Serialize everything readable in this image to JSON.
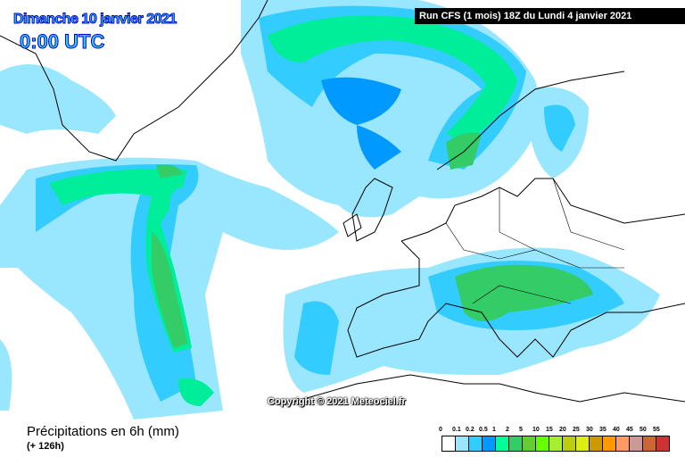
{
  "header": {
    "date": "Dimanche 10 janvier 2021",
    "time": "0:00 UTC",
    "run": "Run CFS (1 mois) 18Z du Lundi 4 janvier 2021"
  },
  "map": {
    "copyright": "Copyright © 2021 Meteociel.fr"
  },
  "footer": {
    "title": "Précipitations en 6h (mm)",
    "subtitle": "(+ 126h)"
  },
  "legend": {
    "labels": [
      "0",
      "0.1",
      "0.2",
      "0.5",
      "1",
      "2",
      "5",
      "10",
      "15",
      "20",
      "25",
      "30",
      "35",
      "40",
      "45",
      "50",
      "55"
    ],
    "colors": [
      "#ffffff",
      "#99e6ff",
      "#33ccff",
      "#0099ff",
      "#00ff99",
      "#33cc66",
      "#66cc33",
      "#66ff00",
      "#a6ee33",
      "#bbcc11",
      "#ddee11",
      "#cc9900",
      "#ff9900",
      "#ff9966",
      "#cc9999",
      "#cc6633",
      "#cc3333"
    ]
  }
}
